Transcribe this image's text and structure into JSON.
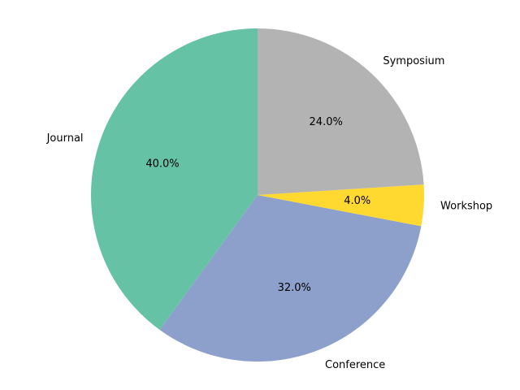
{
  "chart_data": {
    "type": "pie",
    "title": "",
    "start_angle_deg": 90,
    "direction": "counterclockwise",
    "slices": [
      {
        "label": "Journal",
        "value": 40.0,
        "pct_label": "40.0%",
        "color": "#66c2a5"
      },
      {
        "label": "Conference",
        "value": 32.0,
        "pct_label": "32.0%",
        "color": "#8da0cb"
      },
      {
        "label": "Workshop",
        "value": 4.0,
        "pct_label": "4.0%",
        "color": "#ffd92f"
      },
      {
        "label": "Symposium",
        "value": 24.0,
        "pct_label": "24.0%",
        "color": "#b3b3b3"
      }
    ]
  }
}
